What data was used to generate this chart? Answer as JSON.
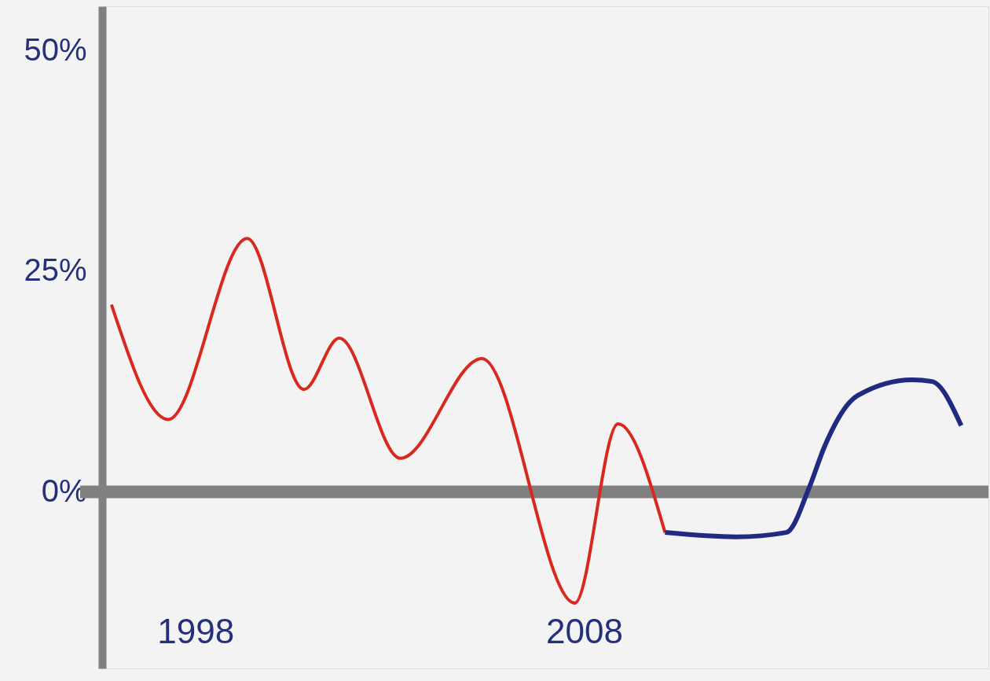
{
  "chart_data": {
    "type": "line",
    "xlim": [
      1995.6,
      2018.4
    ],
    "xticks": [
      1998,
      2008
    ],
    "ylim": [
      -20,
      55
    ],
    "yticks": [
      {
        "value": 0,
        "label": "0%"
      },
      {
        "value": 25,
        "label": "25%"
      },
      {
        "value": 50,
        "label": "50%"
      }
    ],
    "grid": false,
    "marker": "none",
    "line_style": "solid",
    "ref_lines": [
      {
        "axis": "y",
        "value": 0,
        "color": "#808080"
      }
    ],
    "series": [
      {
        "color": "#d9281e",
        "x": [
          1995.84,
          1997.3,
          1999.33,
          2000.79,
          2001.7,
          2003.27,
          2005.37,
          2007.76,
          2008.87,
          2010.08
        ],
        "values": [
          21.2,
          8.2,
          28.7,
          11.6,
          17.4,
          3.8,
          15.1,
          -12.6,
          7.7,
          -4.6
        ]
      },
      {
        "color": "#1f2a80",
        "x": [
          2010.08,
          2011.9,
          2013.2,
          2013.8,
          2014.18,
          2015.03,
          2016.44,
          2016.95,
          2017.7
        ],
        "values": [
          -4.6,
          -5.1,
          -4.6,
          0.6,
          5.1,
          10.9,
          12.7,
          12.5,
          7.5
        ]
      }
    ]
  }
}
